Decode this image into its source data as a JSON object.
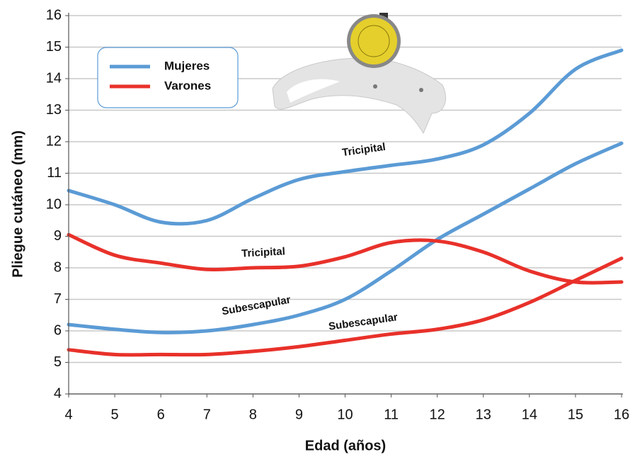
{
  "chart_data": {
    "type": "line",
    "x_label": "Edad (años)",
    "y_label": "Pliegue cutáneo (mm)",
    "x": [
      4,
      5,
      6,
      7,
      8,
      9,
      10,
      11,
      12,
      13,
      14,
      15,
      16
    ],
    "xlim": [
      4,
      16
    ],
    "xticks": [
      4,
      5,
      6,
      7,
      8,
      9,
      10,
      11,
      12,
      13,
      14,
      15,
      16
    ],
    "ylim": [
      4,
      16
    ],
    "yticks": [
      4,
      5,
      6,
      7,
      8,
      9,
      10,
      11,
      12,
      13,
      14,
      15,
      16
    ],
    "grid": true,
    "series": [
      {
        "name": "Mujeres",
        "color": "#5b9bd5",
        "lines": [
          {
            "label": "Tricipital",
            "values": [
              10.45,
              10.0,
              9.45,
              9.5,
              10.2,
              10.8,
              11.05,
              11.25,
              11.45,
              11.9,
              12.9,
              14.3,
              14.9
            ]
          },
          {
            "label": "Subescapular",
            "values": [
              6.2,
              6.05,
              5.95,
              6.0,
              6.2,
              6.5,
              7.0,
              7.9,
              8.9,
              9.7,
              10.5,
              11.3,
              11.95
            ]
          }
        ]
      },
      {
        "name": "Varones",
        "color": "#e8312a",
        "lines": [
          {
            "label": "Tricipital",
            "values": [
              9.05,
              8.4,
              8.15,
              7.95,
              8.0,
              8.05,
              8.35,
              8.8,
              8.85,
              8.5,
              7.9,
              7.55,
              7.55
            ]
          },
          {
            "label": "Subescapular",
            "values": [
              5.4,
              5.25,
              5.25,
              5.25,
              5.35,
              5.5,
              5.7,
              5.9,
              6.05,
              6.35,
              6.9,
              7.6,
              8.3
            ]
          }
        ]
      }
    ]
  }
}
